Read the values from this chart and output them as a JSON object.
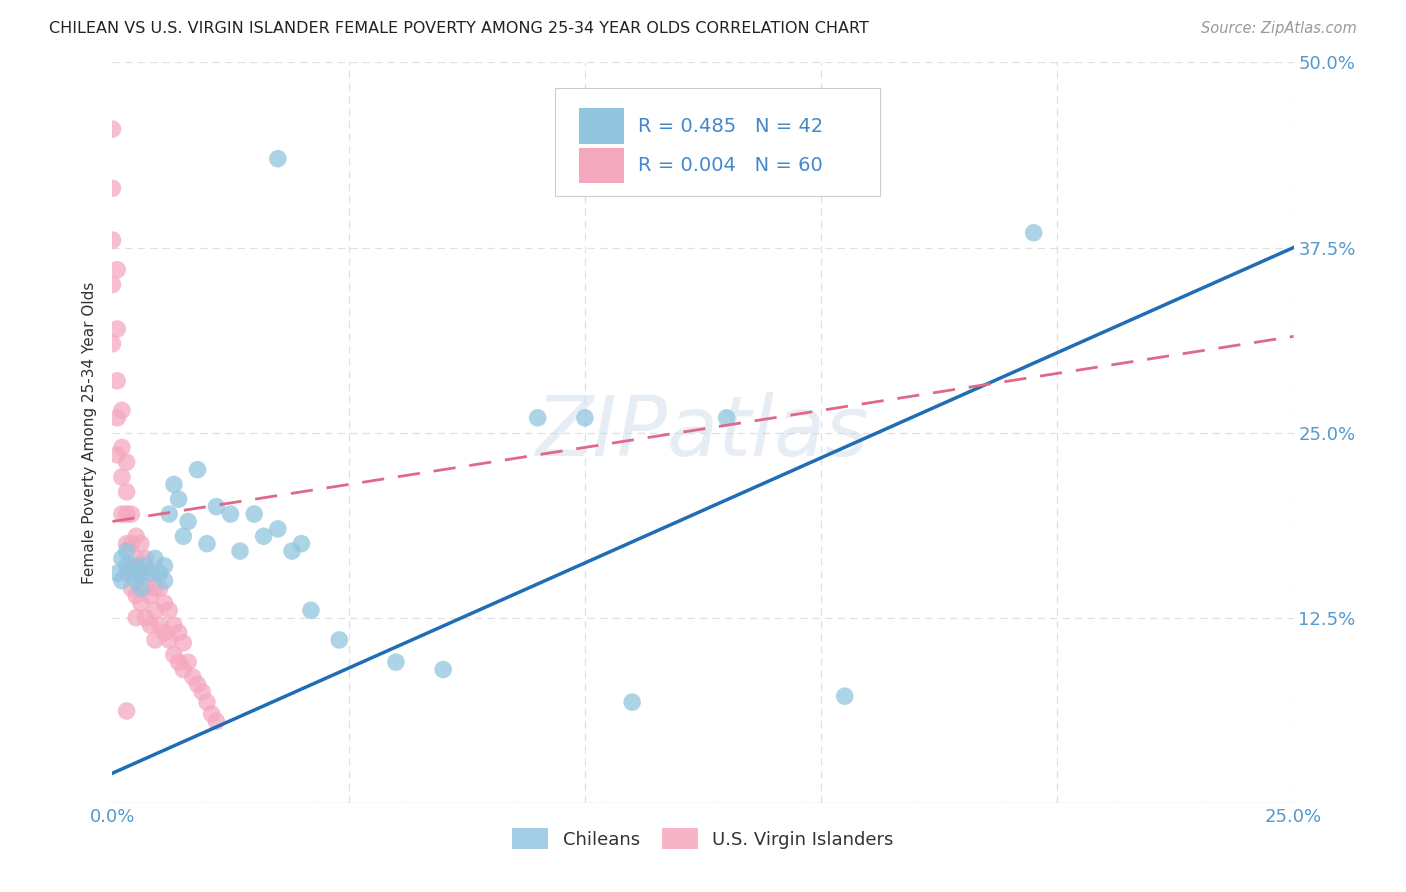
{
  "title": "CHILEAN VS U.S. VIRGIN ISLANDER FEMALE POVERTY AMONG 25-34 YEAR OLDS CORRELATION CHART",
  "source": "Source: ZipAtlas.com",
  "ylabel": "Female Poverty Among 25-34 Year Olds",
  "xlim": [
    0.0,
    0.25
  ],
  "ylim": [
    0.0,
    0.5
  ],
  "xticks": [
    0.0,
    0.05,
    0.1,
    0.15,
    0.2,
    0.25
  ],
  "yticks": [
    0.0,
    0.125,
    0.25,
    0.375,
    0.5
  ],
  "xtick_labels": [
    "0.0%",
    "",
    "",
    "",
    "",
    "25.0%"
  ],
  "ytick_labels": [
    "",
    "12.5%",
    "25.0%",
    "37.5%",
    "50.0%"
  ],
  "watermark": "ZIPatlas",
  "chilean_R": 0.485,
  "chilean_N": 42,
  "virgin_R": 0.004,
  "virgin_N": 60,
  "chilean_color": "#92c5e0",
  "virgin_color": "#f4a8be",
  "trendline_chilean_color": "#1e6db5",
  "trendline_virgin_color": "#e06888",
  "background_color": "#ffffff",
  "grid_color": "#e0e0e0",
  "tick_color": "#5599cc",
  "title_color": "#222222",
  "source_color": "#999999",
  "ylabel_color": "#333333",
  "legend_text_color": "#4488cc",
  "chilean_x": [
    0.001,
    0.002,
    0.002,
    0.003,
    0.003,
    0.004,
    0.005,
    0.005,
    0.006,
    0.006,
    0.007,
    0.008,
    0.009,
    0.01,
    0.011,
    0.011,
    0.012,
    0.013,
    0.014,
    0.015,
    0.016,
    0.018,
    0.02,
    0.022,
    0.025,
    0.027,
    0.03,
    0.032,
    0.035,
    0.038,
    0.04,
    0.042,
    0.048,
    0.06,
    0.07,
    0.035,
    0.195,
    0.11,
    0.155,
    0.1,
    0.09,
    0.13
  ],
  "chilean_y": [
    0.155,
    0.165,
    0.15,
    0.16,
    0.17,
    0.155,
    0.16,
    0.15,
    0.155,
    0.145,
    0.16,
    0.155,
    0.165,
    0.155,
    0.15,
    0.16,
    0.195,
    0.215,
    0.205,
    0.18,
    0.19,
    0.225,
    0.175,
    0.2,
    0.195,
    0.17,
    0.195,
    0.18,
    0.185,
    0.17,
    0.175,
    0.13,
    0.11,
    0.095,
    0.09,
    0.435,
    0.385,
    0.068,
    0.072,
    0.26,
    0.26,
    0.26
  ],
  "virgin_x": [
    0.0,
    0.0,
    0.0,
    0.0,
    0.0,
    0.001,
    0.001,
    0.001,
    0.001,
    0.001,
    0.002,
    0.002,
    0.002,
    0.002,
    0.003,
    0.003,
    0.003,
    0.003,
    0.003,
    0.004,
    0.004,
    0.004,
    0.004,
    0.005,
    0.005,
    0.005,
    0.005,
    0.005,
    0.006,
    0.006,
    0.006,
    0.007,
    0.007,
    0.007,
    0.008,
    0.008,
    0.008,
    0.009,
    0.009,
    0.009,
    0.01,
    0.01,
    0.011,
    0.011,
    0.012,
    0.012,
    0.013,
    0.013,
    0.014,
    0.014,
    0.015,
    0.015,
    0.016,
    0.017,
    0.018,
    0.019,
    0.02,
    0.021,
    0.022,
    0.003
  ],
  "virgin_y": [
    0.455,
    0.415,
    0.38,
    0.35,
    0.31,
    0.36,
    0.32,
    0.285,
    0.26,
    0.235,
    0.265,
    0.24,
    0.22,
    0.195,
    0.23,
    0.21,
    0.195,
    0.175,
    0.155,
    0.195,
    0.175,
    0.16,
    0.145,
    0.18,
    0.165,
    0.155,
    0.14,
    0.125,
    0.175,
    0.155,
    0.135,
    0.165,
    0.145,
    0.125,
    0.155,
    0.14,
    0.12,
    0.145,
    0.13,
    0.11,
    0.145,
    0.12,
    0.135,
    0.115,
    0.13,
    0.11,
    0.12,
    0.1,
    0.115,
    0.095,
    0.108,
    0.09,
    0.095,
    0.085,
    0.08,
    0.075,
    0.068,
    0.06,
    0.055,
    0.062
  ]
}
